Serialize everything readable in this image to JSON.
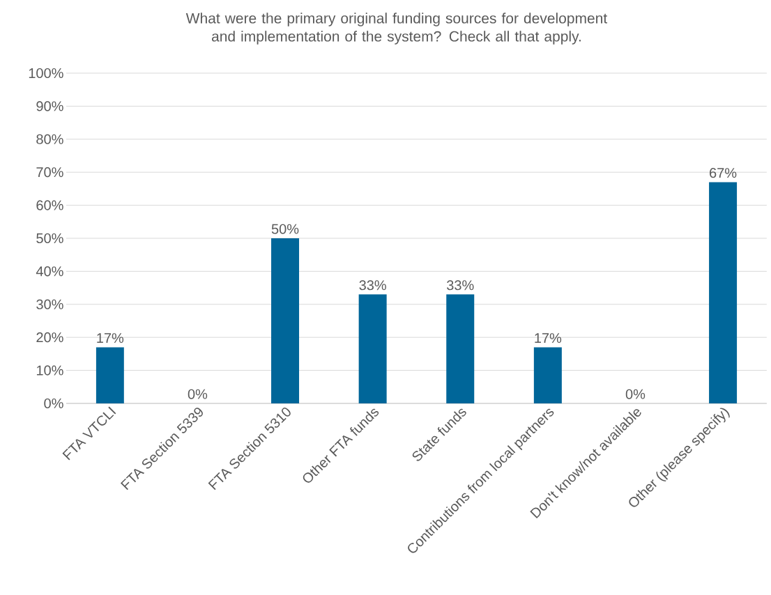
{
  "chart_data": {
    "type": "bar",
    "title": "What were the primary original funding sources for development and implementation of the system? Check all that apply.",
    "categories": [
      "FTA VTCLI",
      "FTA Section 5339",
      "FTA Section 5310",
      "Other FTA funds",
      "State funds",
      "Contributions from local partners",
      "Don't know/not available",
      "Other (please specify)"
    ],
    "values": [
      17,
      0,
      50,
      33,
      33,
      17,
      0,
      67
    ],
    "value_labels": [
      "17%",
      "0%",
      "50%",
      "33%",
      "33%",
      "17%",
      "0%",
      "67%"
    ],
    "color": "#006699",
    "ylim": [
      0,
      100
    ],
    "yticks": [
      {
        "value": 0,
        "label": "0%"
      },
      {
        "value": 10,
        "label": "10%"
      },
      {
        "value": 20,
        "label": "20%"
      },
      {
        "value": 30,
        "label": "30%"
      },
      {
        "value": 40,
        "label": "40%"
      },
      {
        "value": 50,
        "label": "50%"
      },
      {
        "value": 60,
        "label": "60%"
      },
      {
        "value": 70,
        "label": "70%"
      },
      {
        "value": 80,
        "label": "80%"
      },
      {
        "value": 90,
        "label": "90%"
      },
      {
        "value": 100,
        "label": "100%"
      }
    ],
    "grid": "y"
  }
}
